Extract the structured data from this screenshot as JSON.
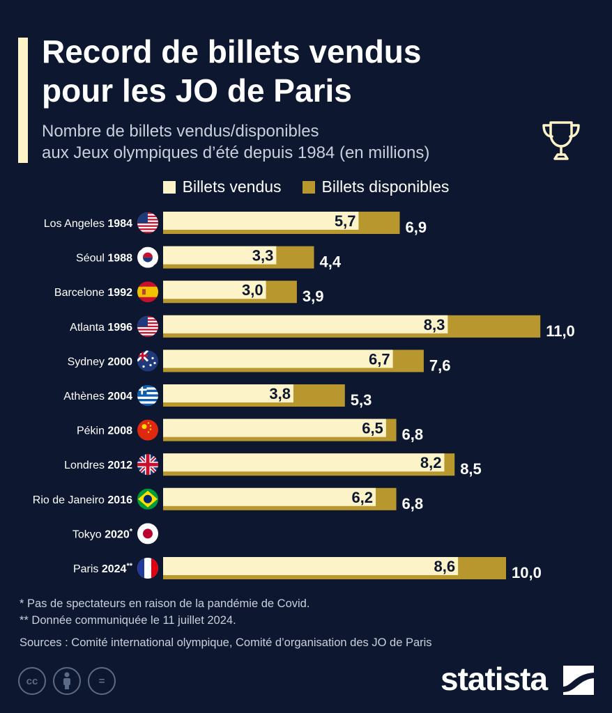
{
  "header": {
    "title_line1": "Record de billets vendus",
    "title_line2": "pour les JO de Paris",
    "subtitle_line1": "Nombre de billets vendus/disponibles",
    "subtitle_line2": "aux Jeux olympiques d’été depuis 1984 (en millions)"
  },
  "colors": {
    "background": "#0d1830",
    "sold": "#fdf3c8",
    "available": "#b8972f",
    "label_dark": "#0d1830"
  },
  "chart_data": {
    "type": "bar",
    "orientation": "horizontal",
    "xlim": [
      0,
      11.0
    ],
    "legend_position": "top-center",
    "series": [
      {
        "name": "Billets vendus",
        "values": [
          5.7,
          3.3,
          3.0,
          8.3,
          6.7,
          3.8,
          6.5,
          8.2,
          6.2,
          null,
          8.6
        ]
      },
      {
        "name": "Billets disponibles",
        "values": [
          6.9,
          4.4,
          3.9,
          11.0,
          7.6,
          5.3,
          6.8,
          8.5,
          6.8,
          null,
          10.0
        ]
      }
    ],
    "rows": [
      {
        "city": "Los Angeles",
        "year": "1984",
        "mark": "",
        "flag": "usa-flag-icon",
        "sold_label": "5,7",
        "avail_label": "6,9"
      },
      {
        "city": "Séoul",
        "year": "1988",
        "mark": "",
        "flag": "south-korea-flag-icon",
        "sold_label": "3,3",
        "avail_label": "4,4"
      },
      {
        "city": "Barcelone",
        "year": "1992",
        "mark": "",
        "flag": "spain-flag-icon",
        "sold_label": "3,0",
        "avail_label": "3,9"
      },
      {
        "city": "Atlanta",
        "year": "1996",
        "mark": "",
        "flag": "usa-flag-icon",
        "sold_label": "8,3",
        "avail_label": "11,0"
      },
      {
        "city": "Sydney",
        "year": "2000",
        "mark": "",
        "flag": "australia-flag-icon",
        "sold_label": "6,7",
        "avail_label": "7,6"
      },
      {
        "city": "Athènes",
        "year": "2004",
        "mark": "",
        "flag": "greece-flag-icon",
        "sold_label": "3,8",
        "avail_label": "5,3"
      },
      {
        "city": "Pékin",
        "year": "2008",
        "mark": "",
        "flag": "china-flag-icon",
        "sold_label": "6,5",
        "avail_label": "6,8"
      },
      {
        "city": "Londres",
        "year": "2012",
        "mark": "",
        "flag": "uk-flag-icon",
        "sold_label": "8,2",
        "avail_label": "8,5"
      },
      {
        "city": "Rio de Janeiro",
        "year": "2016",
        "mark": "",
        "flag": "brazil-flag-icon",
        "sold_label": "6,2",
        "avail_label": "6,8"
      },
      {
        "city": "Tokyo",
        "year": "2020",
        "mark": "*",
        "flag": "japan-flag-icon",
        "sold_label": "",
        "avail_label": ""
      },
      {
        "city": "Paris",
        "year": "2024",
        "mark": "**",
        "flag": "france-flag-icon",
        "sold_label": "8,6",
        "avail_label": "10,0"
      }
    ]
  },
  "footnotes": {
    "note1": "*   Pas de spectateurs en raison de la pandémie de Covid.",
    "note2": "** Donnée communiquée le 11 juillet 2024.",
    "sources": "Sources : Comité international olympique, Comité d’organisation des JO de Paris"
  },
  "footer": {
    "brand": "statista",
    "license_icons": [
      "cc-icon",
      "by-icon",
      "nd-icon"
    ],
    "cc_text": "cc",
    "nd_text": "="
  },
  "icons": {
    "trophy": "trophy-icon"
  }
}
